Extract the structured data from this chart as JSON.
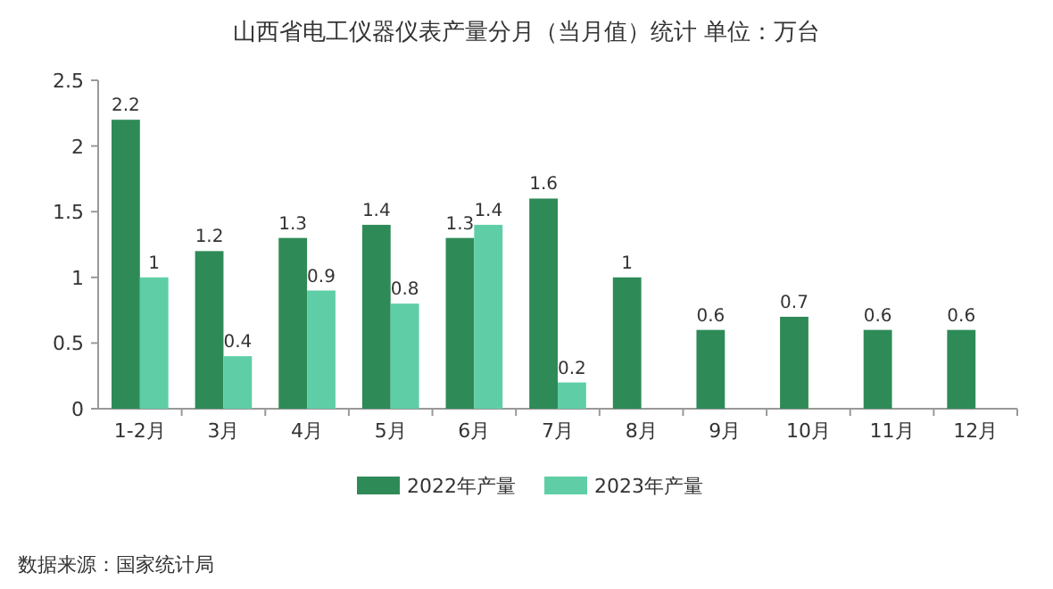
{
  "chart_data": {
    "type": "bar",
    "title": "山西省电工仪器仪表产量分月（当月值）统计  单位：万台",
    "categories": [
      "1-2月",
      "3月",
      "4月",
      "5月",
      "6月",
      "7月",
      "8月",
      "9月",
      "10月",
      "11月",
      "12月"
    ],
    "series": [
      {
        "name": "2022年产量",
        "color": "#2e8b57",
        "values": [
          2.2,
          1.2,
          1.3,
          1.4,
          1.3,
          1.6,
          1,
          0.6,
          0.7,
          0.6,
          0.6
        ]
      },
      {
        "name": "2023年产量",
        "color": "#5fcea6",
        "values": [
          1,
          0.4,
          0.9,
          0.8,
          1.4,
          0.2,
          null,
          null,
          null,
          null,
          null
        ]
      }
    ],
    "ylim": [
      0,
      2.5
    ],
    "yticks": [
      0,
      0.5,
      1,
      1.5,
      2,
      2.5
    ],
    "data_labels": true,
    "legend": "bottom",
    "grid": false,
    "annotations": [
      "数据来源：国家统计局"
    ]
  }
}
